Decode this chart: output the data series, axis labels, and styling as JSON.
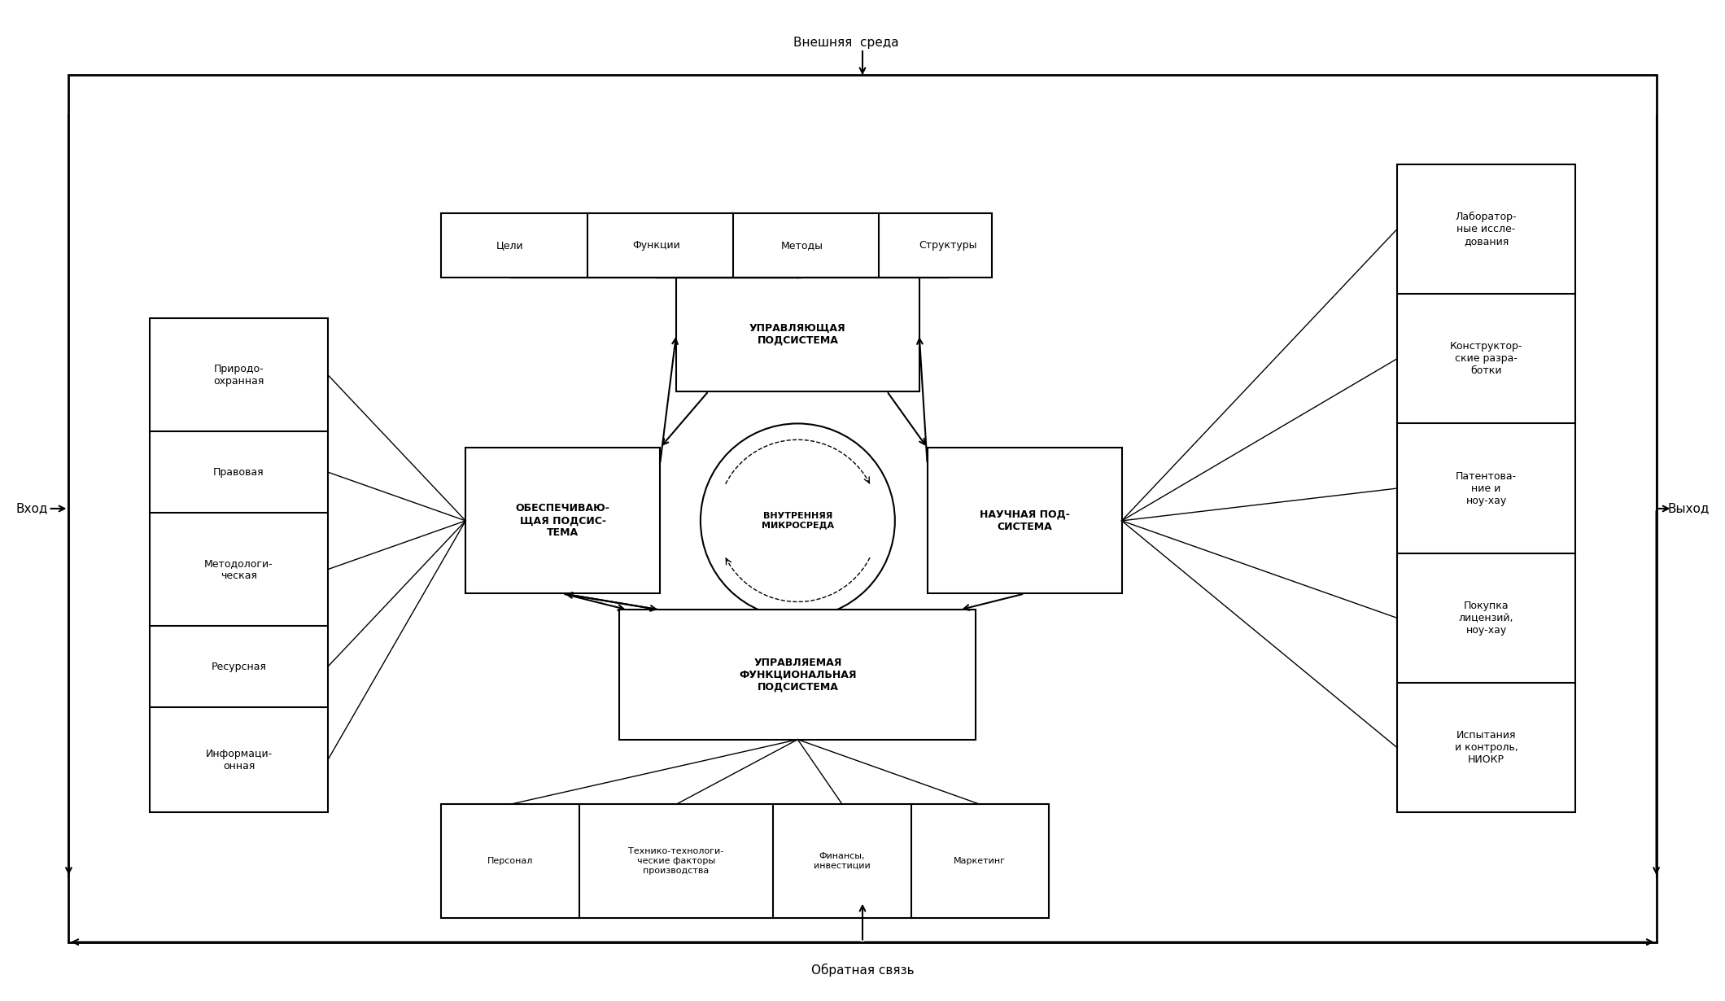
{
  "figsize": [
    21.2,
    12.3
  ],
  "dpi": 100,
  "bg_color": "#ffffff",
  "title_external": "Внешняя  среда",
  "title_feedback": "Обратная связь",
  "label_vhod": "Вход",
  "label_vyhod": "Выход",
  "top_boxes": [
    "Цели",
    "Функции",
    "Методы",
    "Структуры"
  ],
  "bottom_boxes": [
    "Персонал",
    "Технико-технологи-\nческие факторы\nпроизводства",
    "Финансы,\nинвестиции",
    "Маркетинг"
  ],
  "left_boxes": [
    "Информаци-\nонная",
    "Ресурсная",
    "Методологи-\nческая",
    "Правовая",
    "Природо-\nохранная"
  ],
  "right_boxes": [
    "Лаборатор-\nные иссле-\nдования",
    "Конструктор-\nские разра-\nботки",
    "Патентова-\nние и\nноу-хау",
    "Покупка\nлицензий,\nноу-хау",
    "Испытания\nи контроль,\nНИОКР"
  ],
  "center_top_box": "УПРАВЛЯЮЩАЯ\nПОДСИСТЕМА",
  "center_left_box": "ОБЕСПЕЧИВАЮ-\nЩАЯ ПОДСИС-\nТЕМА",
  "center_middle_box": "ВНУТРЕННЯЯ\nМИКРОСРЕДА",
  "center_right_box": "НАУЧНАЯ ПОД-\nСИСТЕМА",
  "center_bottom_box": "УПРАВЛЯЕМАЯ\nФУНКЦИОНАЛЬНАЯ\nПОДСИСТЕМА"
}
